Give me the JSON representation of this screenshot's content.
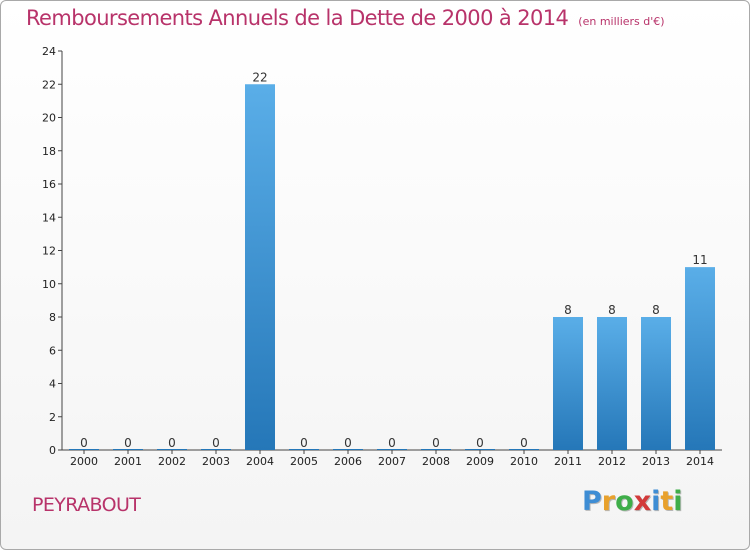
{
  "title": "Remboursements Annuels de la Dette de 2000 à 2014",
  "subtitle": "(en milliers d'€)",
  "commune": "PEYRABOUT",
  "logo": {
    "letters": [
      "P",
      "r",
      "o",
      "x",
      "i",
      "t",
      "i"
    ],
    "colors": [
      "#3e8dd4",
      "#e8a12c",
      "#3fae49",
      "#d23a3a",
      "#3e8dd4",
      "#e8a12c",
      "#3fae49"
    ]
  },
  "chart_data": {
    "type": "bar",
    "title": "Remboursements Annuels de la Dette de 2000 à 2014",
    "subtitle": "(en milliers d'€)",
    "categories": [
      "2000",
      "2001",
      "2002",
      "2003",
      "2004",
      "2005",
      "2006",
      "2007",
      "2008",
      "2009",
      "2010",
      "2011",
      "2012",
      "2013",
      "2014"
    ],
    "values": [
      0,
      0,
      0,
      0,
      22,
      0,
      0,
      0,
      0,
      0,
      0,
      8,
      8,
      8,
      11
    ],
    "value_labels": [
      "0",
      "0",
      "0",
      "0",
      "22",
      "0",
      "0",
      "0",
      "0",
      "0",
      "0",
      "8",
      "8",
      "8",
      "11"
    ],
    "ylim": [
      0,
      24
    ],
    "yticks": [
      0,
      2,
      4,
      6,
      8,
      10,
      12,
      14,
      16,
      18,
      20,
      22,
      24
    ],
    "grid": false,
    "colors": {
      "bar_top": "#5aaee8",
      "bar_bottom": "#2577b8"
    }
  }
}
